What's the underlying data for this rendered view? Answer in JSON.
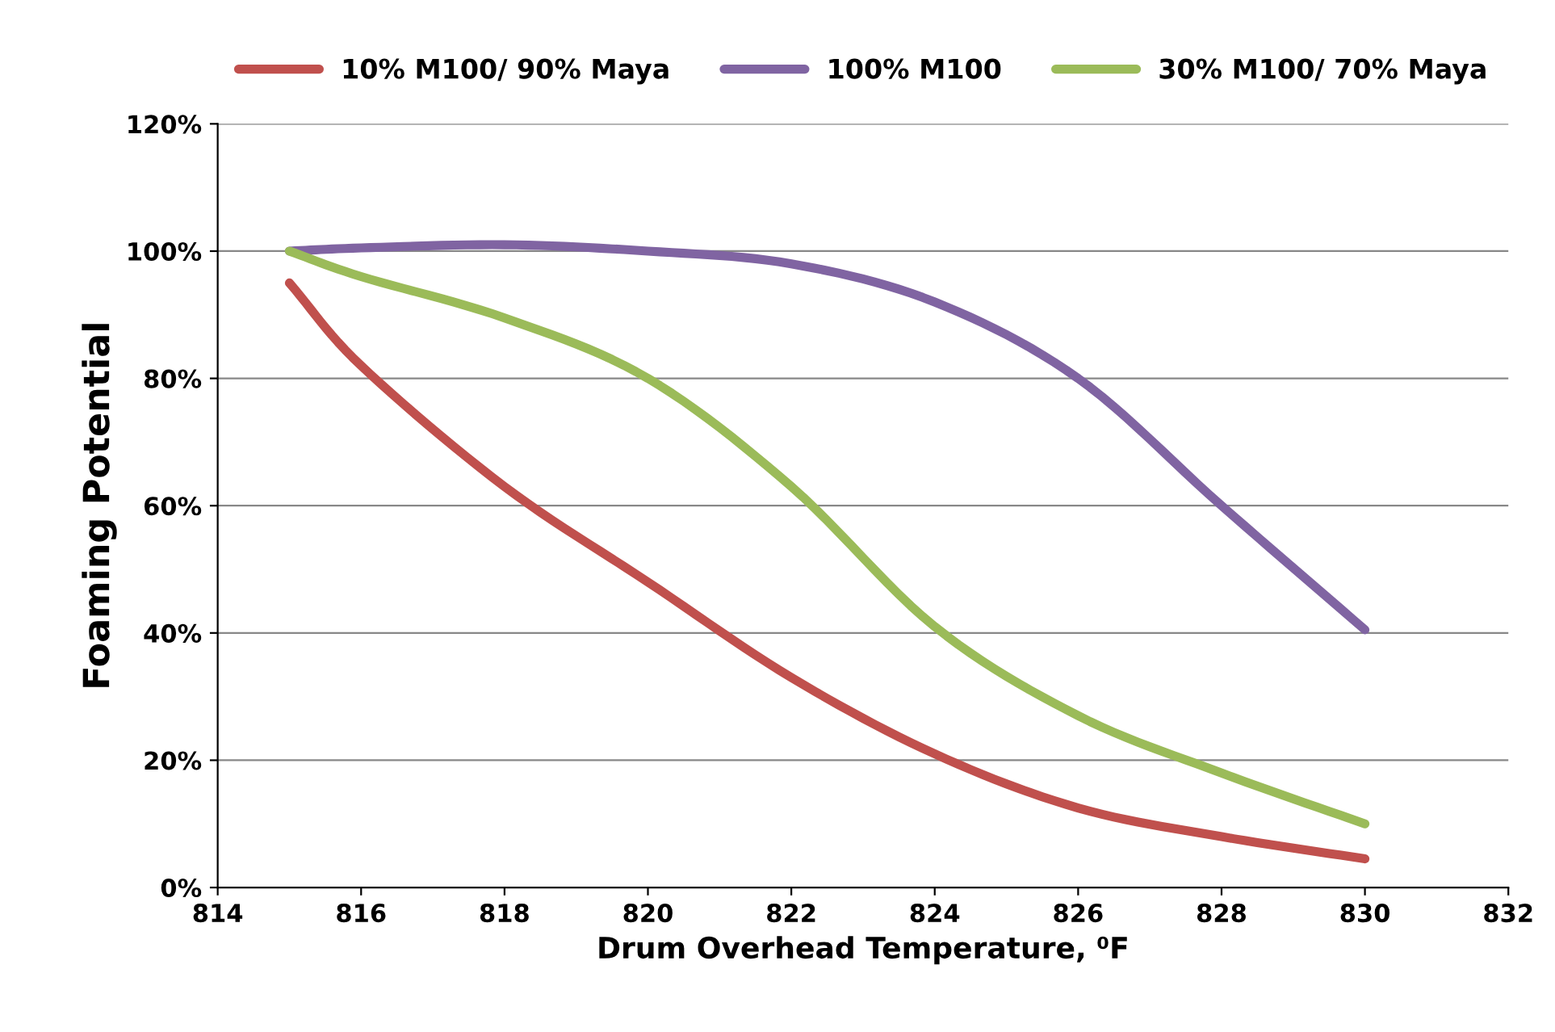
{
  "chart_data": {
    "type": "line",
    "xlabel": "Drum Overhead Temperature, ⁰F",
    "ylabel": "Foaming Potential",
    "xlim": [
      814,
      832
    ],
    "xticks": [
      814,
      816,
      818,
      820,
      822,
      824,
      826,
      828,
      830,
      832
    ],
    "ylim": [
      0,
      120
    ],
    "yticks": [
      {
        "value": 0,
        "label": "0%"
      },
      {
        "value": 20,
        "label": "20%"
      },
      {
        "value": 40,
        "label": "40%"
      },
      {
        "value": 60,
        "label": "60%"
      },
      {
        "value": 80,
        "label": "80%"
      },
      {
        "value": 100,
        "label": "100%"
      },
      {
        "value": 120,
        "label": "120%"
      }
    ],
    "grid": "y",
    "legend": "top",
    "marker": "none",
    "line_style": "solid",
    "x": [
      815,
      816,
      818,
      820,
      822,
      824,
      826,
      828,
      830
    ],
    "series": [
      {
        "name": "10% M100/ 90% Maya",
        "color": "#c0504d",
        "values": [
          95,
          82,
          63,
          48,
          33,
          21,
          12.5,
          8,
          4.5
        ]
      },
      {
        "name": "100% M100",
        "color": "#8064a2",
        "values": [
          100,
          100.5,
          101,
          100,
          98,
          92,
          80,
          60,
          40.5
        ]
      },
      {
        "name": "30% M100/ 70% Maya",
        "color": "#9bbb59",
        "values": [
          100,
          96,
          89.5,
          80,
          63,
          41,
          27,
          18,
          10
        ]
      }
    ]
  }
}
